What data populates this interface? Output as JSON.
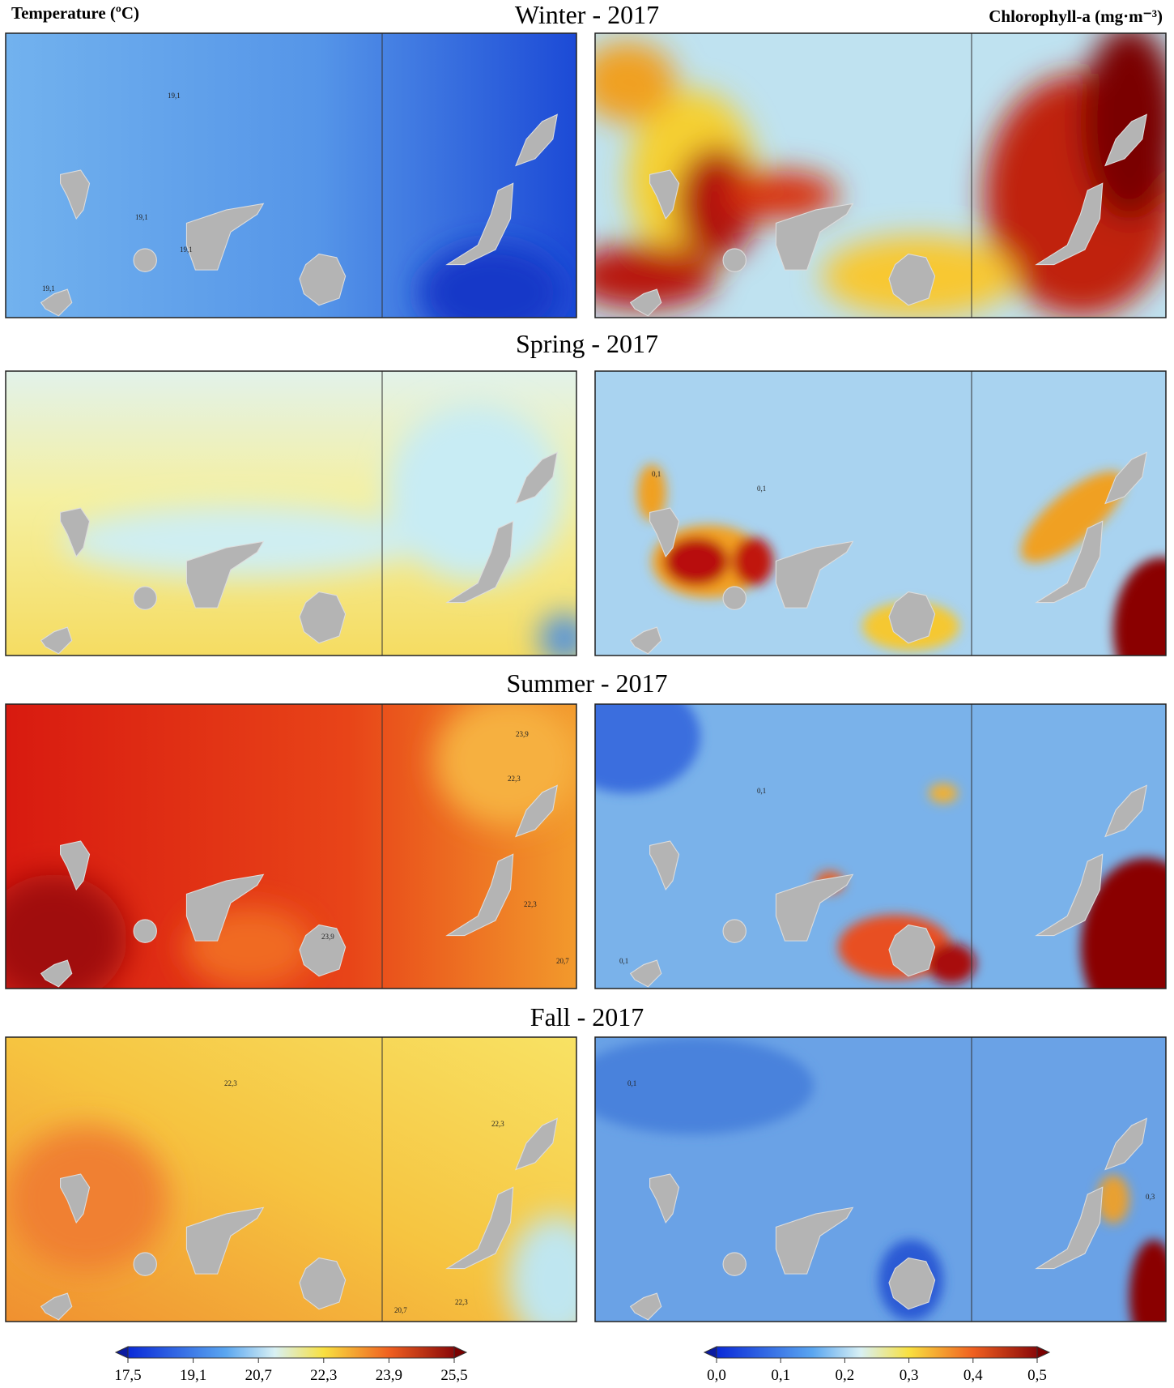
{
  "header": {
    "left_label": "Temperature (ºC)",
    "right_label": "Chlorophyll-a (mg·m⁻³)"
  },
  "panels": [
    {
      "title": "Winter - 2017",
      "temperature_contours": [
        "19,1",
        "19,1",
        "19,1",
        "19,1"
      ],
      "chlorophyll_contours": []
    },
    {
      "title": "Spring - 2017",
      "temperature_contours": [],
      "chlorophyll_contours": [
        "0,1",
        "0,1"
      ]
    },
    {
      "title": "Summer - 2017",
      "temperature_contours": [
        "23,9",
        "22,3",
        "22,3",
        "23,9",
        "20,7"
      ],
      "chlorophyll_contours": [
        "0,1",
        "0,1"
      ]
    },
    {
      "title": "Fall - 2017",
      "temperature_contours": [
        "22,3",
        "22,3",
        "22,3",
        "20,7"
      ],
      "chlorophyll_contours": [
        "0,1",
        "0,3"
      ]
    }
  ],
  "colorbars": {
    "temperature": {
      "lim": [
        17.5,
        25.5
      ],
      "ticks": [
        {
          "value": 17.5,
          "label": "17,5"
        },
        {
          "value": 19.1,
          "label": "19,1"
        },
        {
          "value": 20.7,
          "label": "20,7"
        },
        {
          "value": 22.3,
          "label": "22,3"
        },
        {
          "value": 23.9,
          "label": "23,9"
        },
        {
          "value": 25.5,
          "label": "25,5"
        }
      ]
    },
    "chlorophyll": {
      "lim": [
        0,
        0.5
      ],
      "ticks": [
        {
          "value": 0,
          "label": "0,0"
        },
        {
          "value": 0.1,
          "label": "0,1"
        },
        {
          "value": 0.2,
          "label": "0,2"
        },
        {
          "value": 0.3,
          "label": "0,3"
        },
        {
          "value": 0.4,
          "label": "0,4"
        },
        {
          "value": 0.5,
          "label": "0,5"
        }
      ]
    }
  }
}
